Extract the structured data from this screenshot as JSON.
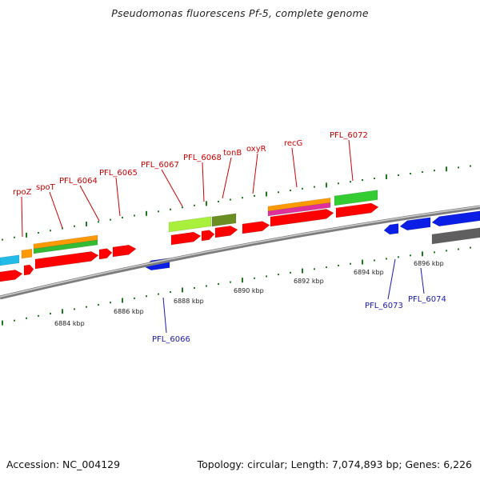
{
  "title": "Pseudomonas fluorescens Pf-5, complete genome",
  "footer": {
    "accession": "Accession: NC_004129",
    "topology": "Topology: circular; Length: 7,074,893 bp; Genes: 6,226"
  },
  "colors": {
    "forward_label": "#cc0000",
    "reverse_label": "#1a1ab3",
    "backbone": "#9a9a9a",
    "tick": "#1f7a1f"
  },
  "scale_labels": [
    "6884 kbp",
    "6886 kbp",
    "6888 kbp",
    "6890 kbp",
    "6892 kbp",
    "6894 kbp",
    "6896 kbp"
  ],
  "forward_gene_labels": [
    "rpoZ",
    "spoT",
    "PFL_6064",
    "PFL_6065",
    "PFL_6067",
    "PFL_6068",
    "tonB",
    "oxyR",
    "recG",
    "PFL_6072"
  ],
  "reverse_gene_labels": [
    "PFL_6066",
    "PFL_6073",
    "PFL_6074"
  ],
  "feature_types": [
    "CDS",
    "COG category bars"
  ]
}
